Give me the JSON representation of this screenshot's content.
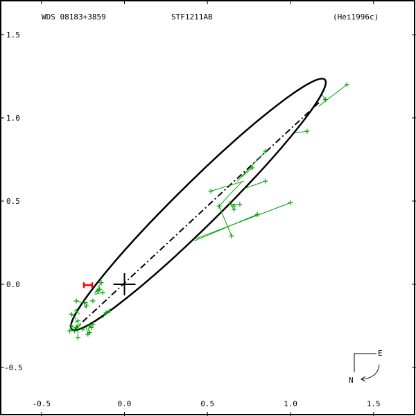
{
  "header": {
    "left": "WDS 08183+3859",
    "center": "STF1211AB",
    "right": "(Hei1996c)"
  },
  "compass": {
    "east": "E",
    "north": "N"
  },
  "colors": {
    "orbit": "#000000",
    "observations": "#00a000",
    "highlight": "#ff0000",
    "primary": "#000000"
  },
  "chart_data": {
    "type": "scatter",
    "title": "",
    "xlim": [
      -0.75,
      1.76
    ],
    "ylim": [
      -0.78,
      1.7
    ],
    "x_axis_inverted": false,
    "xticks": [
      -0.5,
      0.0,
      0.5,
      1.0,
      1.5
    ],
    "xtick_labels": [
      "-0.5",
      "0.0",
      "0.5",
      "1.0",
      "1.5"
    ],
    "yticks": [
      1.5,
      1.0,
      0.5,
      0.0,
      -0.5
    ],
    "ytick_labels": [
      "1.5",
      "1.0",
      "0.5",
      "0.0",
      "-0.5"
    ],
    "grid": false,
    "orbit_ellipse": {
      "center": [
        0.445,
        0.48
      ],
      "semi_major": 1.07,
      "semi_minor": 0.13,
      "angle_deg": 44.6
    },
    "line_of_nodes": [
      [
        -0.31,
        -0.28
      ],
      [
        1.18,
        1.1
      ]
    ],
    "primary": [
      0.0,
      0.0
    ],
    "highlighted_point": [
      -0.215,
      -0.005
    ],
    "observations": [
      {
        "obs": [
          1.34,
          1.2
        ],
        "pred": [
          1.17,
          1.07
        ]
      },
      {
        "obs": [
          1.21,
          1.11
        ],
        "pred": [
          1.19,
          1.14
        ]
      },
      {
        "obs": [
          1.1,
          0.92
        ],
        "pred": [
          1.03,
          0.91
        ]
      },
      {
        "obs": [
          0.85,
          0.8
        ],
        "pred": [
          0.68,
          0.62
        ]
      },
      {
        "obs": [
          0.77,
          0.7
        ],
        "pred": [
          0.7,
          0.64
        ]
      },
      {
        "obs": [
          0.85,
          0.62
        ],
        "pred": [
          0.72,
          0.575
        ]
      },
      {
        "obs": [
          0.52,
          0.56
        ],
        "pred": [
          0.72,
          0.62
        ]
      },
      {
        "obs": [
          0.57,
          0.47
        ],
        "pred": [
          0.71,
          0.62
        ]
      },
      {
        "obs": [
          0.645,
          0.29
        ],
        "pred": [
          0.57,
          0.47
        ]
      },
      {
        "obs": [
          0.695,
          0.48
        ],
        "pred": [
          0.63,
          0.48
        ]
      },
      {
        "obs": [
          0.66,
          0.47
        ],
        "pred": [
          0.63,
          0.5
        ]
      },
      {
        "obs": [
          0.66,
          0.45
        ],
        "pred": [
          0.63,
          0.49
        ]
      },
      {
        "obs": [
          1.0,
          0.49
        ],
        "pred": [
          0.42,
          0.27
        ]
      },
      {
        "obs": [
          0.8,
          0.42
        ],
        "pred": [
          0.42,
          0.26
        ]
      },
      {
        "obs": [
          -0.14,
          0.01
        ],
        "pred": [
          -0.17,
          -0.04
        ]
      },
      {
        "obs": [
          -0.15,
          -0.03
        ],
        "pred": [
          -0.18,
          -0.05
        ]
      },
      {
        "obs": [
          -0.13,
          -0.05
        ],
        "pred": [
          -0.18,
          -0.06
        ]
      },
      {
        "obs": [
          -0.16,
          -0.04
        ],
        "pred": [
          -0.18,
          -0.05
        ]
      },
      {
        "obs": [
          -0.29,
          -0.1
        ],
        "pred": [
          -0.22,
          -0.12
        ]
      },
      {
        "obs": [
          -0.24,
          -0.11
        ],
        "pred": [
          -0.22,
          -0.11
        ]
      },
      {
        "obs": [
          -0.19,
          -0.1
        ],
        "pred": [
          -0.21,
          -0.1
        ]
      },
      {
        "obs": [
          -0.23,
          -0.13
        ],
        "pred": [
          -0.24,
          -0.14
        ]
      },
      {
        "obs": [
          -0.29,
          -0.16
        ],
        "pred": [
          -0.27,
          -0.18
        ]
      },
      {
        "obs": [
          -0.32,
          -0.18
        ],
        "pred": [
          -0.29,
          -0.21
        ]
      },
      {
        "obs": [
          -0.28,
          -0.22
        ],
        "pred": [
          -0.3,
          -0.23
        ]
      },
      {
        "obs": [
          -0.32,
          -0.25
        ],
        "pred": [
          -0.31,
          -0.26
        ]
      },
      {
        "obs": [
          -0.33,
          -0.28
        ],
        "pred": [
          -0.31,
          -0.27
        ]
      },
      {
        "obs": [
          -0.3,
          -0.28
        ],
        "pred": [
          -0.3,
          -0.27
        ]
      },
      {
        "obs": [
          -0.29,
          -0.26
        ],
        "pred": [
          -0.3,
          -0.27
        ]
      },
      {
        "obs": [
          -0.28,
          -0.25
        ],
        "pred": [
          -0.29,
          -0.27
        ]
      },
      {
        "obs": [
          -0.25,
          -0.27
        ],
        "pred": [
          -0.27,
          -0.27
        ]
      },
      {
        "obs": [
          -0.21,
          -0.29
        ],
        "pred": [
          -0.22,
          -0.26
        ]
      },
      {
        "obs": [
          -0.22,
          -0.3
        ],
        "pred": [
          -0.23,
          -0.26
        ]
      },
      {
        "obs": [
          -0.28,
          -0.32
        ],
        "pred": [
          -0.28,
          -0.27
        ]
      },
      {
        "obs": [
          -0.21,
          -0.25
        ],
        "pred": [
          -0.22,
          -0.25
        ]
      },
      {
        "obs": [
          -0.19,
          -0.24
        ],
        "pred": [
          -0.2,
          -0.24
        ]
      },
      {
        "obs": [
          -0.11,
          -0.17
        ],
        "pred": [
          -0.13,
          -0.2
        ]
      },
      {
        "obs": [
          -0.09,
          -0.16
        ],
        "pred": [
          -0.12,
          -0.19
        ]
      },
      {
        "obs": [
          -0.2,
          -0.26
        ],
        "pred": [
          -0.21,
          -0.25
        ]
      }
    ]
  }
}
